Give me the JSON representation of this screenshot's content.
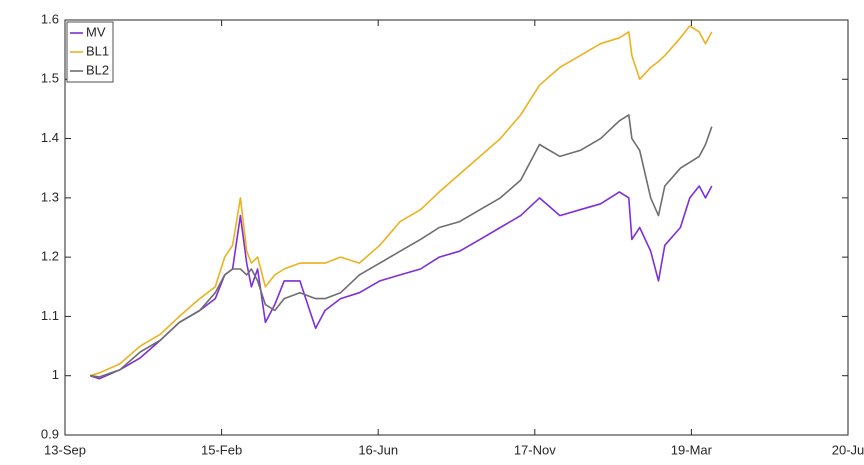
{
  "chart_data": {
    "type": "line",
    "x": [
      0.16,
      0.22,
      0.35,
      0.48,
      0.61,
      0.73,
      0.86,
      0.96,
      1.02,
      1.07,
      1.12,
      1.16,
      1.19,
      1.23,
      1.28,
      1.34,
      1.4,
      1.5,
      1.6,
      1.66,
      1.76,
      1.88,
      2.01,
      2.14,
      2.27,
      2.39,
      2.52,
      2.65,
      2.78,
      2.91,
      3.03,
      3.16,
      3.29,
      3.42,
      3.54,
      3.6,
      3.62,
      3.67,
      3.74,
      3.79,
      3.83,
      3.93,
      3.99,
      4.05,
      4.09,
      4.13
    ],
    "series": [
      {
        "name": "MV",
        "color": "#7e2fd9",
        "values": [
          1.0,
          0.995,
          1.01,
          1.03,
          1.06,
          1.09,
          1.11,
          1.13,
          1.17,
          1.18,
          1.27,
          1.19,
          1.15,
          1.18,
          1.09,
          1.12,
          1.16,
          1.16,
          1.08,
          1.11,
          1.13,
          1.14,
          1.16,
          1.17,
          1.18,
          1.2,
          1.21,
          1.23,
          1.25,
          1.27,
          1.3,
          1.27,
          1.28,
          1.29,
          1.31,
          1.3,
          1.23,
          1.25,
          1.21,
          1.16,
          1.22,
          1.25,
          1.3,
          1.32,
          1.3,
          1.32
        ]
      },
      {
        "name": "BL1",
        "color": "#edb120",
        "values": [
          1.0,
          1.005,
          1.02,
          1.05,
          1.07,
          1.1,
          1.13,
          1.15,
          1.2,
          1.22,
          1.3,
          1.21,
          1.19,
          1.2,
          1.15,
          1.17,
          1.18,
          1.19,
          1.19,
          1.19,
          1.2,
          1.19,
          1.22,
          1.26,
          1.28,
          1.31,
          1.34,
          1.37,
          1.4,
          1.44,
          1.49,
          1.52,
          1.54,
          1.56,
          1.57,
          1.58,
          1.54,
          1.5,
          1.52,
          1.53,
          1.54,
          1.57,
          1.59,
          1.58,
          1.56,
          1.58
        ]
      },
      {
        "name": "BL2",
        "color": "#6e6e6e",
        "values": [
          1.0,
          0.998,
          1.01,
          1.04,
          1.06,
          1.09,
          1.11,
          1.14,
          1.17,
          1.18,
          1.18,
          1.17,
          1.18,
          1.16,
          1.12,
          1.11,
          1.13,
          1.14,
          1.13,
          1.13,
          1.14,
          1.17,
          1.19,
          1.21,
          1.23,
          1.25,
          1.26,
          1.28,
          1.3,
          1.33,
          1.39,
          1.37,
          1.38,
          1.4,
          1.43,
          1.44,
          1.4,
          1.38,
          1.3,
          1.27,
          1.32,
          1.35,
          1.36,
          1.37,
          1.39,
          1.42
        ]
      }
    ],
    "xlim": [
      0,
      5
    ],
    "xticks": [
      {
        "value": 0,
        "label": "13-Sep"
      },
      {
        "value": 1,
        "label": "15-Feb"
      },
      {
        "value": 2,
        "label": "16-Jun"
      },
      {
        "value": 3,
        "label": "17-Nov"
      },
      {
        "value": 4,
        "label": "19-Mar"
      },
      {
        "value": 5,
        "label": "20-Ju"
      }
    ],
    "ylim": [
      0.9,
      1.6
    ],
    "yticks": [
      0.9,
      1,
      1.1,
      1.2,
      1.3,
      1.4,
      1.5,
      1.6
    ],
    "legend": "upper left"
  }
}
